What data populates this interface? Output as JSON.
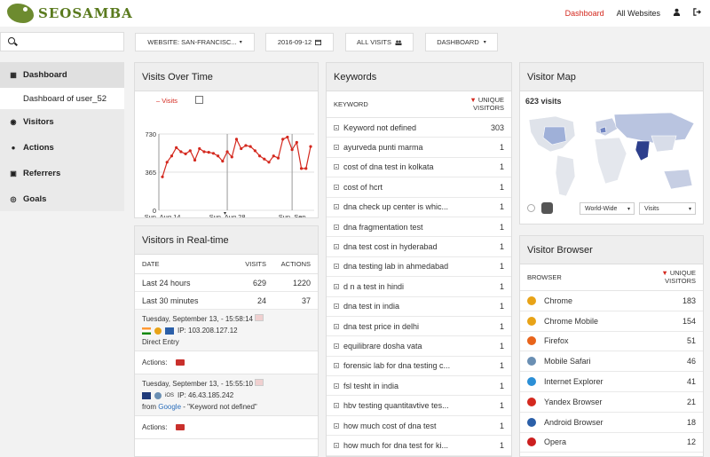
{
  "brand": {
    "logo_text": "SEOSAMBA"
  },
  "topnav": {
    "dashboard": "Dashboard",
    "all_websites": "All Websites"
  },
  "toolbar": {
    "website": "WEBSITE: SAN-FRANCISC...",
    "date": "2016-09-12",
    "segment": "ALL VISITS",
    "dashboard": "DASHBOARD"
  },
  "sidebar": {
    "items": [
      {
        "label": "Dashboard",
        "icon": "grid-icon"
      },
      {
        "label": "Dashboard of user_52",
        "icon": ""
      },
      {
        "label": "Visitors",
        "icon": "eye-icon"
      },
      {
        "label": "Actions",
        "icon": "bolt-icon"
      },
      {
        "label": "Referrers",
        "icon": "referrer-icon"
      },
      {
        "label": "Goals",
        "icon": "target-icon"
      }
    ]
  },
  "visits_over_time": {
    "title": "Visits Over Time",
    "legend": "Visits",
    "chart_data": {
      "type": "line",
      "series": [
        {
          "name": "Visits",
          "values": [
            320,
            460,
            520,
            600,
            560,
            540,
            570,
            480,
            590,
            560,
            555,
            545,
            520,
            470,
            560,
            510,
            680,
            590,
            620,
            610,
            570,
            520,
            490,
            460,
            520,
            500,
            680,
            700,
            580,
            650,
            400,
            400,
            610
          ]
        }
      ],
      "x_ticks": [
        "Sun, Aug 14",
        "Sun, Aug 28",
        "Sun, Sep"
      ],
      "y_ticks": [
        "730",
        "365",
        "0"
      ],
      "ylim": [
        0,
        730
      ],
      "color": "#d4291f"
    }
  },
  "realtime": {
    "title": "Visitors in Real-time",
    "headers": [
      "DATE",
      "VISITS",
      "ACTIONS"
    ],
    "rows": [
      {
        "label": "Last 24 hours",
        "visits": "629",
        "actions": "1220"
      },
      {
        "label": "Last 30 minutes",
        "visits": "24",
        "actions": "37"
      }
    ],
    "visits": [
      {
        "time": "Tuesday, September 13, - 15:58:14",
        "ip": "IP: 103.208.127.12",
        "source": "Direct Entry",
        "source_prefix": "",
        "source_link": "",
        "source_suffix": "",
        "os": ""
      },
      {
        "time": "Tuesday, September 13, - 15:55:10",
        "ip": "IP: 46.43.185.242",
        "source": "",
        "source_prefix": "from",
        "source_link": "Google",
        "source_suffix": "- \"Keyword not defined\"",
        "os": "iOS"
      }
    ],
    "actions_label": "Actions:"
  },
  "keywords": {
    "title": "Keywords",
    "col_keyword": "KEYWORD",
    "col_unique_1": "UNIQUE",
    "col_unique_2": "VISITORS",
    "rows": [
      {
        "label": "Keyword not defined",
        "value": "303"
      },
      {
        "label": "ayurveda punti marma",
        "value": "1"
      },
      {
        "label": "cost of dna test in kolkata",
        "value": "1"
      },
      {
        "label": "cost of hcrt",
        "value": "1"
      },
      {
        "label": "dna check up center is whic...",
        "value": "1"
      },
      {
        "label": "dna fragmentation test",
        "value": "1"
      },
      {
        "label": "dna test cost in hyderabad",
        "value": "1"
      },
      {
        "label": "dna testing lab in ahmedabad",
        "value": "1"
      },
      {
        "label": "d n a test in hindi",
        "value": "1"
      },
      {
        "label": "dna test in india",
        "value": "1"
      },
      {
        "label": "dna test price in delhi",
        "value": "1"
      },
      {
        "label": "equilibrare dosha vata",
        "value": "1"
      },
      {
        "label": "forensic lab for dna testing c...",
        "value": "1"
      },
      {
        "label": "fsl tesht in india",
        "value": "1"
      },
      {
        "label": "hbv testing quantitavtive tes...",
        "value": "1"
      },
      {
        "label": "how much cost of dna test",
        "value": "1"
      },
      {
        "label": "how much for dna test for ki...",
        "value": "1"
      }
    ]
  },
  "visitor_map": {
    "title": "Visitor Map",
    "visits": "623 visits",
    "region": "World-Wide",
    "metric": "Visits"
  },
  "browser": {
    "title": "Visitor Browser",
    "col_browser": "BROWSER",
    "col_unique_1": "UNIQUE",
    "col_unique_2": "VISITORS",
    "rows": [
      {
        "label": "Chrome",
        "value": "183",
        "color": "#e8a317"
      },
      {
        "label": "Chrome Mobile",
        "value": "154",
        "color": "#e8a317"
      },
      {
        "label": "Firefox",
        "value": "51",
        "color": "#e8641b"
      },
      {
        "label": "Mobile Safari",
        "value": "46",
        "color": "#6a8fb3"
      },
      {
        "label": "Internet Explorer",
        "value": "41",
        "color": "#2b8fd6"
      },
      {
        "label": "Yandex Browser",
        "value": "21",
        "color": "#d4291f"
      },
      {
        "label": "Android Browser",
        "value": "18",
        "color": "#2b5fa8"
      },
      {
        "label": "Opera",
        "value": "12",
        "color": "#cc1f1f"
      }
    ]
  }
}
